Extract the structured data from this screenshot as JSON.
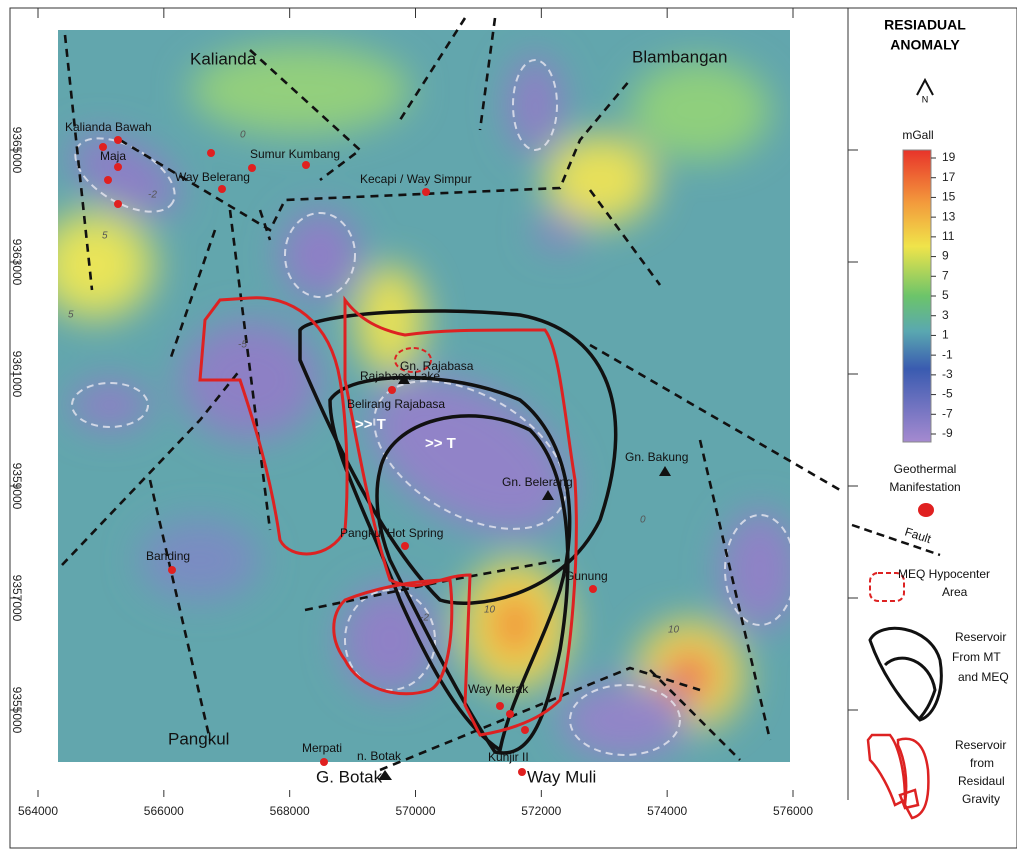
{
  "header": {
    "title_line1": "RESIADUAL",
    "title_line2": "ANOMALY",
    "north": "N",
    "unit": "mGall"
  },
  "colorbar": {
    "labels": [
      19,
      17,
      15,
      13,
      11,
      9,
      7,
      5,
      3,
      1,
      -1,
      -3,
      -5,
      -7,
      -9
    ]
  },
  "axes": {
    "x_ticks": [
      564000,
      566000,
      568000,
      570000,
      572000,
      574000,
      576000
    ],
    "y_ticks": [
      9365000,
      9363000,
      9361000,
      9359000,
      9357000,
      9355000
    ]
  },
  "places": [
    "Kalianda",
    "Blambangan",
    "Kalianda Bawah",
    "Maja",
    "Way Belerang",
    "Sumur Kumbang",
    "Kecapi / Way Simpur",
    "Gn. Rajabasa",
    "Rajabasa Lake",
    "Belirang Rajabasa",
    ">> T",
    ">> T",
    "Gn. Belerang",
    "Gn. Bakung",
    "Pangkul Hot Spring",
    "Banding",
    "Gunung",
    "Way Merak",
    "Merpati",
    "n. Botak",
    "Kunjir II",
    "G. Botak",
    "Way Muli",
    "Pangkul"
  ],
  "contour_labels": [
    "0",
    "-2",
    "5",
    "5",
    "-5",
    "10",
    "10",
    "-2",
    "0"
  ],
  "legend": {
    "manifestation": [
      "Geothermal",
      "Manifestation"
    ],
    "fault": "Fault",
    "meq": [
      "MEQ Hypocenter",
      "Area"
    ],
    "mt": [
      "Reservoir",
      "From MT",
      "and MEQ"
    ],
    "gravity": [
      "Reservoir",
      "from",
      "Residaul",
      "Gravity"
    ]
  }
}
